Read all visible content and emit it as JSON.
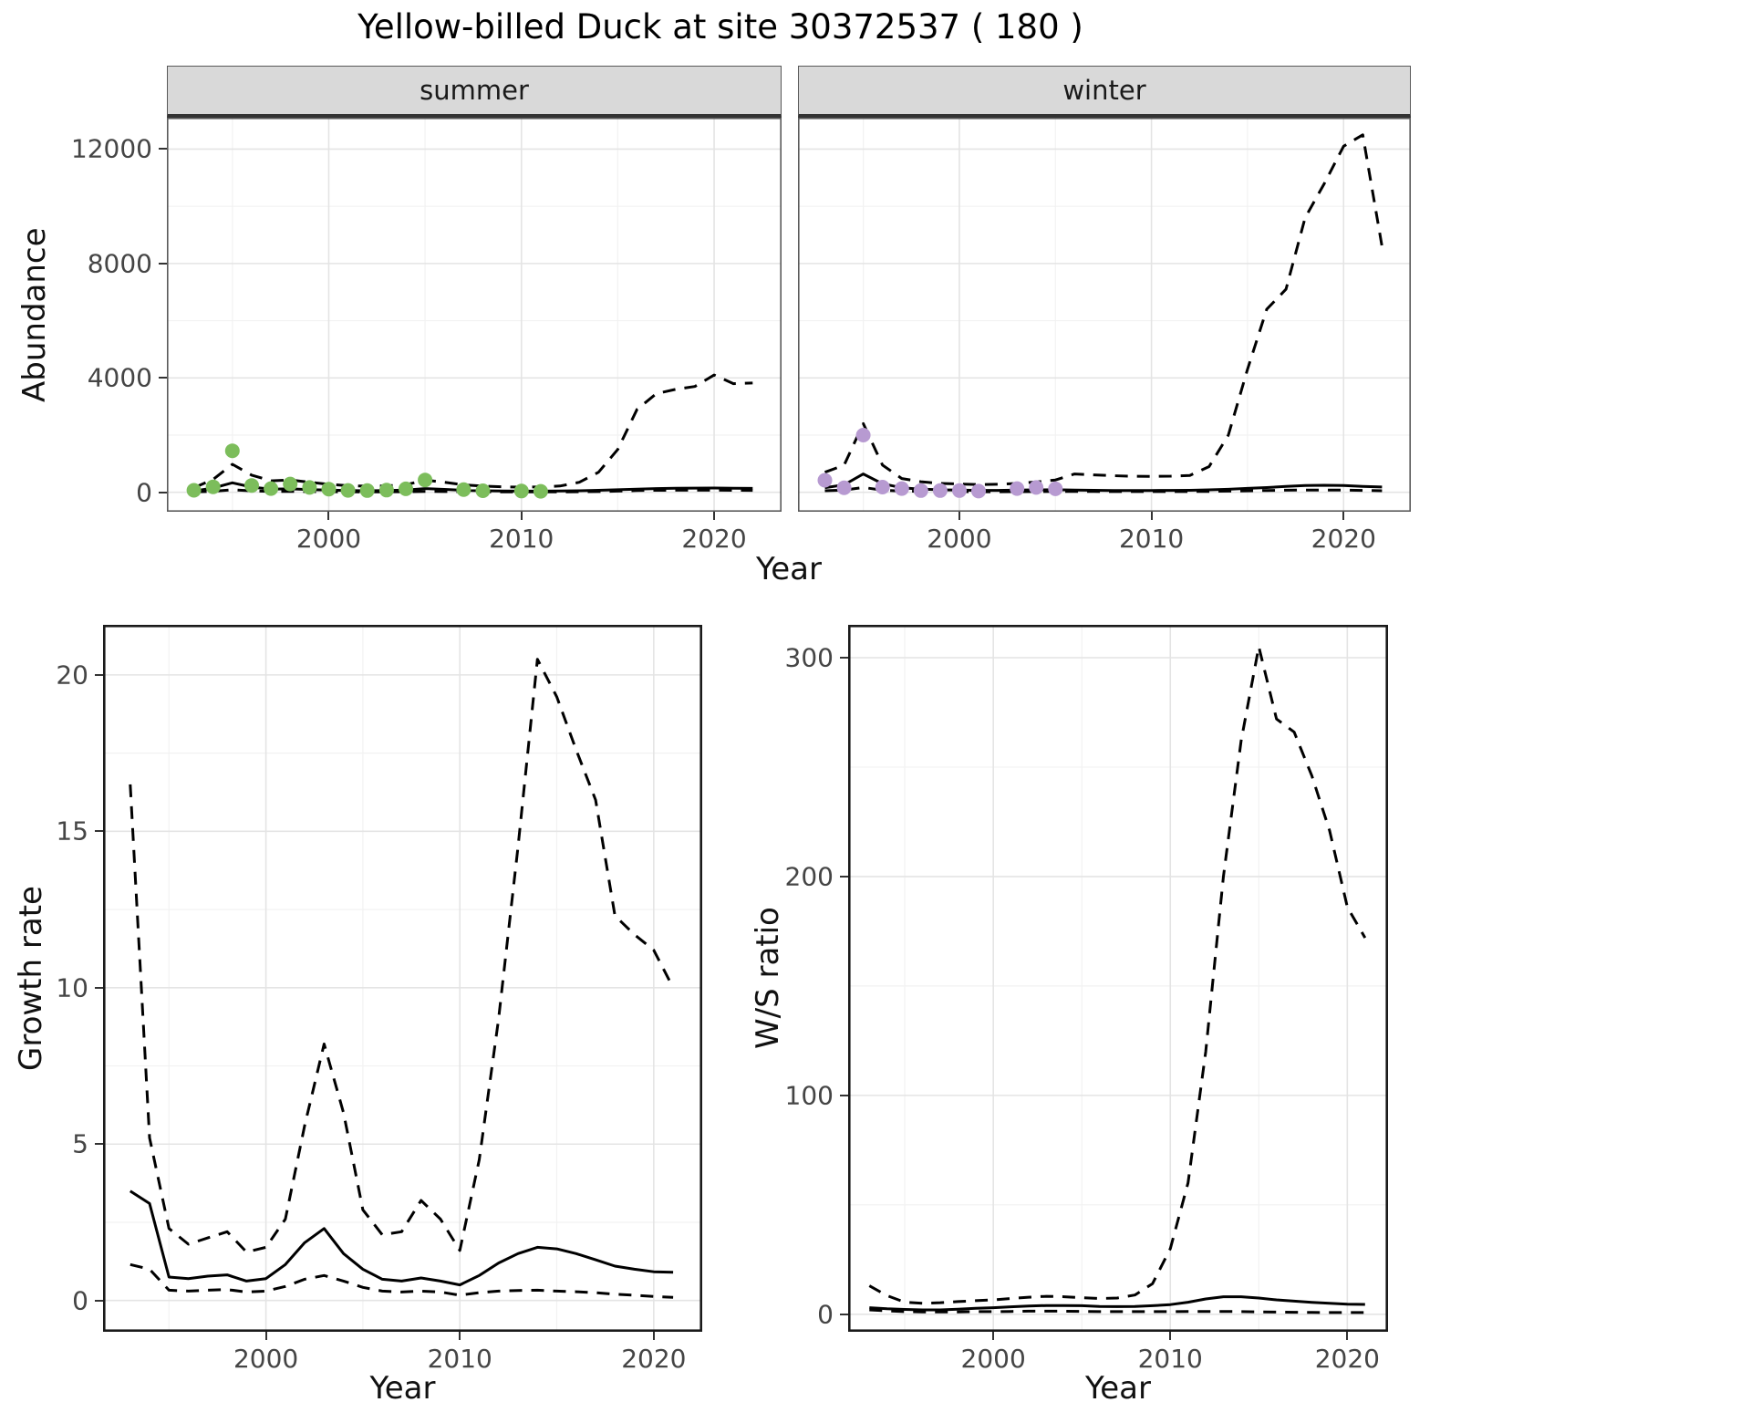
{
  "title": "Yellow-billed Duck at site 30372537 ( 180 )",
  "colors": {
    "summer_points": "#7cbd5b",
    "winter_points": "#b79ad1",
    "line": "#000000",
    "grid_major": "#e4e4e4",
    "grid_minor": "#f2f2f2",
    "top_panel_border": "#595959",
    "bottom_panel_border": "#1a1a1a"
  },
  "axis_labels": {
    "abundance": "Abundance",
    "year": "Year",
    "growth_rate": "Growth rate",
    "ws_ratio": "W/S ratio"
  },
  "chart_data": [
    {
      "id": "abundance_summer",
      "type": "line",
      "facet_label": "summer",
      "xlabel": "Year",
      "ylabel": "Abundance",
      "xlim": [
        1991.6,
        2023.5
      ],
      "ylim": [
        -680,
        13100
      ],
      "x_ticks": [
        2000,
        2010,
        2020
      ],
      "y_ticks": [
        0,
        4000,
        8000,
        12000
      ],
      "x": [
        1993,
        1994,
        1995,
        1996,
        1997,
        1998,
        1999,
        2000,
        2001,
        2002,
        2003,
        2004,
        2005,
        2006,
        2007,
        2008,
        2009,
        2010,
        2011,
        2012,
        2013,
        2014,
        2015,
        2016,
        2017,
        2018,
        2019,
        2020,
        2021,
        2022
      ],
      "series": [
        {
          "name": "upper_ci",
          "style": "dashed",
          "y": [
            160,
            450,
            980,
            600,
            400,
            430,
            350,
            280,
            230,
            215,
            225,
            260,
            430,
            350,
            260,
            215,
            190,
            180,
            190,
            220,
            350,
            700,
            1500,
            2900,
            3450,
            3600,
            3700,
            4100,
            3800,
            3820
          ]
        },
        {
          "name": "lower_ci",
          "style": "dashed",
          "y": [
            12,
            35,
            90,
            50,
            28,
            30,
            24,
            18,
            14,
            13,
            14,
            18,
            32,
            25,
            18,
            14,
            12,
            11,
            12,
            13,
            18,
            25,
            40,
            60,
            70,
            72,
            72,
            75,
            70,
            68
          ]
        },
        {
          "name": "median_fit",
          "style": "solid",
          "y": [
            40,
            150,
            330,
            180,
            110,
            120,
            95,
            75,
            60,
            55,
            60,
            75,
            130,
            100,
            70,
            55,
            45,
            40,
            40,
            45,
            55,
            70,
            90,
            110,
            130,
            140,
            145,
            150,
            140,
            135
          ]
        }
      ],
      "points": {
        "name": "observed_counts",
        "color_key": "summer_points",
        "x": [
          1993,
          1994,
          1995,
          1996,
          1997,
          1998,
          1999,
          2000,
          2001,
          2002,
          2003,
          2004,
          2005,
          2007,
          2008,
          2010,
          2011
        ],
        "y": [
          70,
          190,
          1450,
          240,
          130,
          290,
          170,
          110,
          65,
          60,
          75,
          120,
          430,
          95,
          55,
          45,
          35
        ]
      }
    },
    {
      "id": "abundance_winter",
      "type": "line",
      "facet_label": "winter",
      "xlabel": "Year",
      "ylabel": "Abundance",
      "xlim": [
        1991.6,
        2023.5
      ],
      "ylim": [
        -680,
        13100
      ],
      "x_ticks": [
        2000,
        2010,
        2020
      ],
      "y_ticks": [
        0,
        4000,
        8000,
        12000
      ],
      "x": [
        1993,
        1994,
        1995,
        1996,
        1997,
        1998,
        1999,
        2000,
        2001,
        2002,
        2003,
        2004,
        2005,
        2006,
        2007,
        2008,
        2009,
        2010,
        2011,
        2012,
        2013,
        2014,
        2015,
        2016,
        2017,
        2018,
        2019,
        2020,
        2021,
        2022
      ],
      "series": [
        {
          "name": "upper_ci",
          "style": "dashed",
          "y": [
            700,
            950,
            2400,
            950,
            480,
            370,
            310,
            290,
            270,
            280,
            310,
            360,
            430,
            640,
            610,
            580,
            560,
            555,
            565,
            590,
            900,
            2000,
            4300,
            6400,
            7100,
            9600,
            10800,
            12100,
            12500,
            8600
          ]
        },
        {
          "name": "lower_ci",
          "style": "dashed",
          "y": [
            55,
            75,
            170,
            75,
            40,
            30,
            25,
            22,
            20,
            20,
            22,
            25,
            28,
            30,
            28,
            26,
            25,
            25,
            26,
            27,
            32,
            40,
            50,
            62,
            72,
            78,
            80,
            75,
            65,
            55
          ]
        },
        {
          "name": "median_fit",
          "style": "solid",
          "y": [
            160,
            260,
            640,
            300,
            160,
            110,
            85,
            75,
            65,
            65,
            75,
            85,
            90,
            80,
            70,
            62,
            60,
            62,
            65,
            70,
            85,
            105,
            135,
            165,
            205,
            235,
            245,
            235,
            205,
            185
          ]
        }
      ],
      "points": {
        "name": "observed_counts",
        "color_key": "winter_points",
        "x": [
          1993,
          1994,
          1995,
          1996,
          1997,
          1998,
          1999,
          2000,
          2001,
          2003,
          2004,
          2005
        ],
        "y": [
          420,
          160,
          2000,
          180,
          130,
          60,
          60,
          60,
          40,
          130,
          170,
          120
        ]
      }
    },
    {
      "id": "growth_rate",
      "type": "line",
      "xlabel": "Year",
      "ylabel": "Growth rate",
      "xlim": [
        1991.6,
        2022.5
      ],
      "ylim": [
        -1.0,
        21.6
      ],
      "x_ticks": [
        2000,
        2010,
        2020
      ],
      "y_ticks": [
        0,
        5,
        10,
        15,
        20
      ],
      "x": [
        1993,
        1994,
        1995,
        1996,
        1997,
        1998,
        1999,
        2000,
        2001,
        2002,
        2003,
        2004,
        2005,
        2006,
        2007,
        2008,
        2009,
        2010,
        2011,
        2012,
        2013,
        2014,
        2015,
        2016,
        2017,
        2018,
        2019,
        2020,
        2021
      ],
      "series": [
        {
          "name": "upper_ci",
          "style": "dashed",
          "y": [
            16.5,
            5.2,
            2.3,
            1.8,
            2.0,
            2.2,
            1.55,
            1.7,
            2.6,
            5.6,
            8.2,
            6.0,
            2.9,
            2.1,
            2.2,
            3.2,
            2.6,
            1.6,
            4.5,
            9.0,
            14.5,
            20.5,
            19.3,
            17.6,
            16.0,
            12.3,
            11.7,
            11.2,
            10.0
          ]
        },
        {
          "name": "lower_ci",
          "style": "dashed",
          "y": [
            1.15,
            1.0,
            0.33,
            0.3,
            0.33,
            0.35,
            0.27,
            0.3,
            0.45,
            0.68,
            0.8,
            0.62,
            0.42,
            0.3,
            0.27,
            0.3,
            0.27,
            0.17,
            0.25,
            0.3,
            0.32,
            0.33,
            0.3,
            0.28,
            0.25,
            0.2,
            0.17,
            0.13,
            0.1
          ]
        },
        {
          "name": "median_fit",
          "style": "solid",
          "y": [
            3.5,
            3.1,
            0.75,
            0.7,
            0.78,
            0.82,
            0.62,
            0.7,
            1.15,
            1.85,
            2.3,
            1.5,
            1.0,
            0.68,
            0.62,
            0.72,
            0.62,
            0.5,
            0.8,
            1.2,
            1.5,
            1.7,
            1.65,
            1.5,
            1.3,
            1.1,
            1.0,
            0.92,
            0.9
          ]
        }
      ]
    },
    {
      "id": "ws_ratio",
      "type": "line",
      "xlabel": "Year",
      "ylabel": "W/S ratio",
      "xlim": [
        1991.8,
        2022.3
      ],
      "ylim": [
        -8,
        315
      ],
      "x_ticks": [
        2000,
        2010,
        2020
      ],
      "y_ticks": [
        0,
        100,
        200,
        300
      ],
      "x": [
        1993,
        1994,
        1995,
        1996,
        1997,
        1998,
        1999,
        2000,
        2001,
        2002,
        2003,
        2004,
        2005,
        2006,
        2007,
        2008,
        2009,
        2010,
        2011,
        2012,
        2013,
        2014,
        2015,
        2016,
        2017,
        2018,
        2019,
        2020,
        2021
      ],
      "series": [
        {
          "name": "upper_ci",
          "style": "dashed",
          "y": [
            13,
            8.5,
            5.5,
            5.0,
            5.3,
            5.8,
            6.2,
            6.6,
            7.2,
            7.8,
            8.2,
            8.0,
            7.6,
            7.2,
            7.4,
            8.8,
            14,
            30,
            60,
            120,
            200,
            262,
            305,
            272,
            266,
            246,
            221,
            186,
            172
          ]
        },
        {
          "name": "lower_ci",
          "style": "dashed",
          "y": [
            2.0,
            1.6,
            1.2,
            1.1,
            1.1,
            1.1,
            1.2,
            1.2,
            1.3,
            1.4,
            1.4,
            1.4,
            1.3,
            1.2,
            1.2,
            1.2,
            1.2,
            1.2,
            1.3,
            1.3,
            1.3,
            1.2,
            1.1,
            1.0,
            0.9,
            0.85,
            0.8,
            0.8,
            0.8
          ]
        },
        {
          "name": "median_fit",
          "style": "solid",
          "y": [
            3.0,
            2.5,
            2.2,
            2.0,
            2.0,
            2.3,
            2.7,
            3.0,
            3.4,
            3.8,
            4.0,
            4.0,
            3.9,
            3.6,
            3.5,
            3.6,
            3.9,
            4.4,
            5.5,
            7.0,
            8.0,
            8.0,
            7.4,
            6.6,
            6.0,
            5.4,
            5.0,
            4.6,
            4.5
          ]
        }
      ]
    }
  ]
}
